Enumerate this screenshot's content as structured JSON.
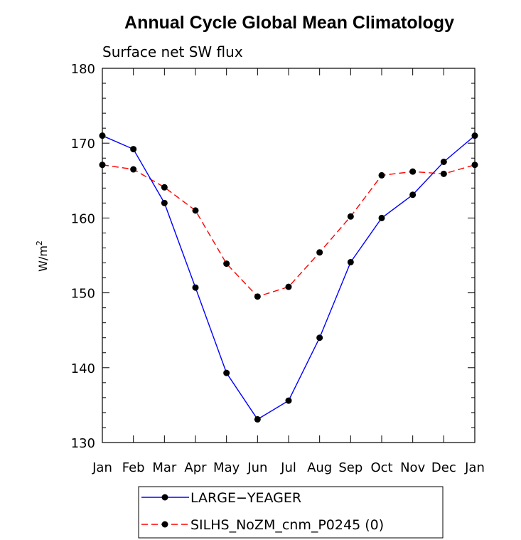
{
  "chart_data": {
    "type": "line",
    "title": "Annual Cycle Global Mean Climatology",
    "subtitle": "Surface net SW flux",
    "ylabel": "W/m",
    "ylabel_sup": "2",
    "xlabel": "",
    "categories": [
      "Jan",
      "Feb",
      "Mar",
      "Apr",
      "May",
      "Jun",
      "Jul",
      "Aug",
      "Sep",
      "Oct",
      "Nov",
      "Dec",
      "Jan"
    ],
    "ylim": [
      130,
      180
    ],
    "yticks": [
      130,
      140,
      150,
      160,
      170,
      180
    ],
    "ytick_labels": [
      "130",
      "140",
      "150",
      "160",
      "170",
      "180"
    ],
    "grid": false,
    "legend_position": "bottom",
    "series": [
      {
        "name": "LARGE−YEAGER",
        "color": "#0000ff",
        "dash": "solid",
        "values": [
          171.0,
          169.2,
          162.0,
          150.7,
          139.3,
          133.1,
          135.6,
          144.0,
          154.1,
          160.0,
          163.1,
          167.5,
          171.0
        ]
      },
      {
        "name": "SILHS_NoZM_cnm_P0245 (0)",
        "color": "#ff0000",
        "dash": "dashed",
        "values": [
          167.1,
          166.5,
          164.1,
          161.0,
          153.9,
          149.5,
          150.8,
          155.4,
          160.2,
          165.7,
          166.2,
          165.9,
          167.1
        ]
      }
    ]
  }
}
